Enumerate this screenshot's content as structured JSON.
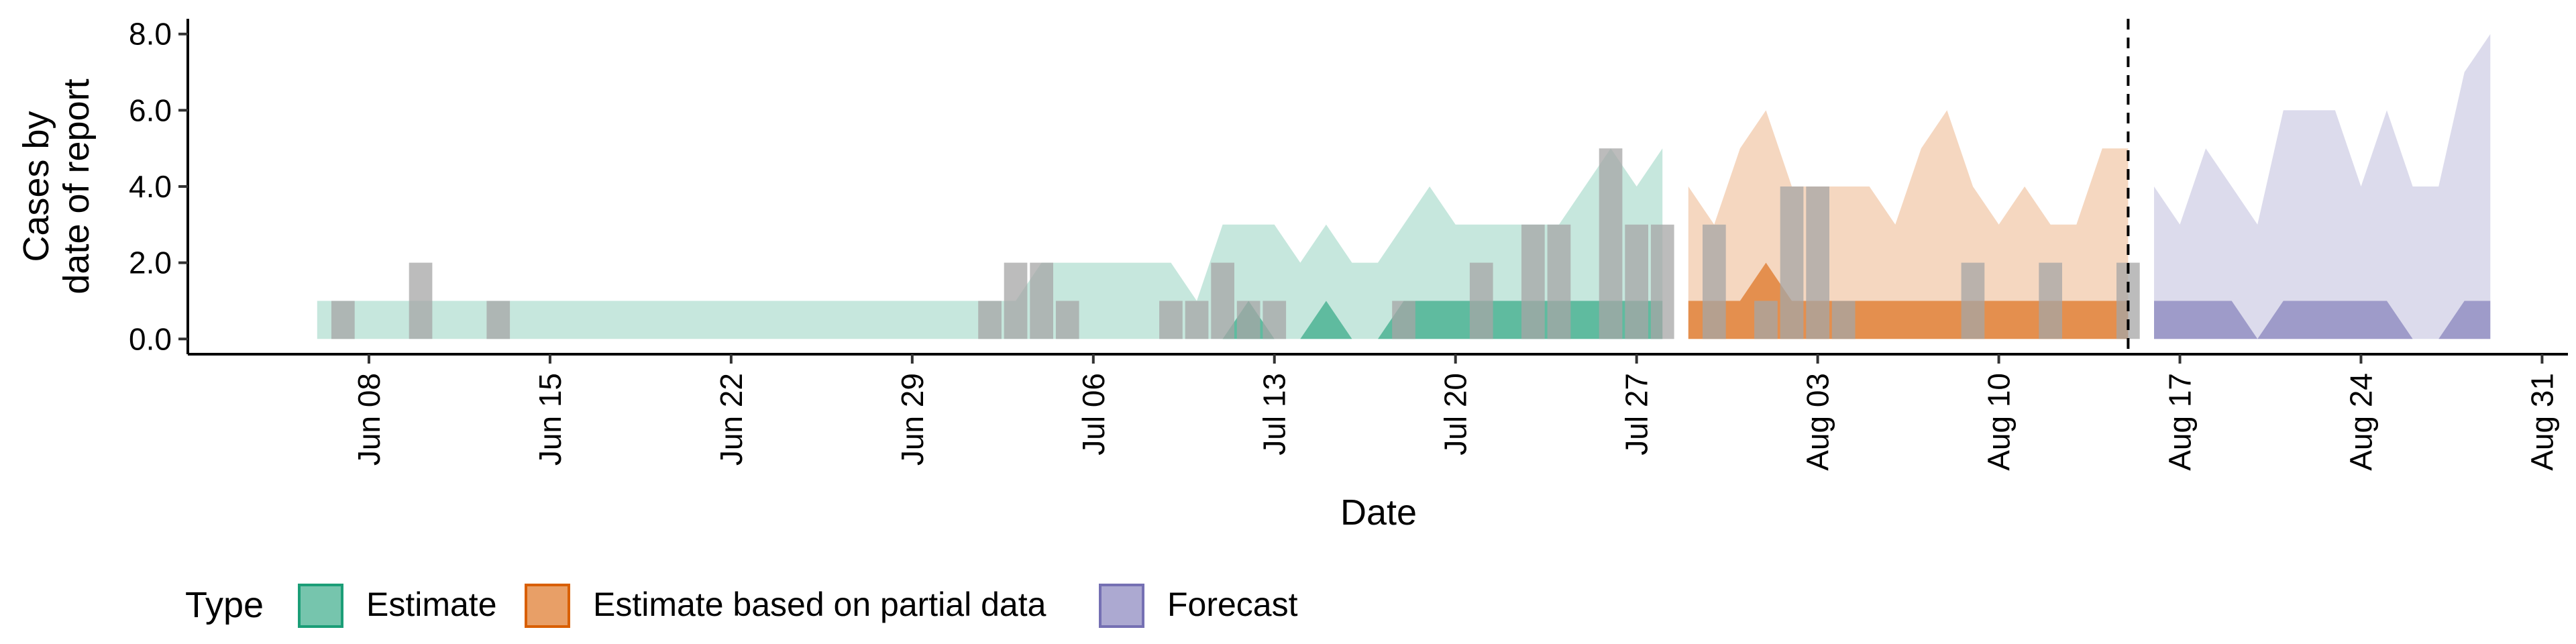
{
  "chart_data": {
    "type": "area",
    "xlabel": "Date",
    "ylabel_lines": [
      "Cases by",
      "date of report"
    ],
    "ylim": [
      -0.4,
      8.4
    ],
    "xlim": [
      "2020-06-01",
      "2020-09-01"
    ],
    "yticks": [
      0,
      2,
      4,
      6,
      8
    ],
    "ytick_labels": [
      "0.0",
      "2.0",
      "4.0",
      "6.0",
      "8.0"
    ],
    "xticks": [
      "2020-06-08",
      "2020-06-15",
      "2020-06-22",
      "2020-06-29",
      "2020-07-06",
      "2020-07-13",
      "2020-07-20",
      "2020-07-27",
      "2020-08-03",
      "2020-08-10",
      "2020-08-17",
      "2020-08-24",
      "2020-08-31"
    ],
    "xtick_labels": [
      "Jun 08",
      "Jun 15",
      "Jun 22",
      "Jun 29",
      "Jul 06",
      "Jul 13",
      "Jul 20",
      "Jul 27",
      "Aug 03",
      "Aug 10",
      "Aug 17",
      "Aug 24",
      "Aug 31"
    ],
    "vline": "2020-08-15",
    "legend": {
      "title": "Type",
      "position": "bottom-left",
      "entries": [
        {
          "label": "Estimate",
          "fill": "#1b9e77",
          "border": "#1b9e77"
        },
        {
          "label": "Estimate based on partial data",
          "fill": "#d95f02",
          "border": "#d95f02"
        },
        {
          "label": "Forecast",
          "fill": "#7570b3",
          "border": "#7570b3"
        }
      ]
    },
    "series": [
      {
        "type": "Estimate",
        "color": "#1b9e77",
        "dates": [
          "2020-06-06",
          "2020-06-07",
          "2020-06-08",
          "2020-06-09",
          "2020-06-10",
          "2020-06-11",
          "2020-06-12",
          "2020-06-13",
          "2020-06-14",
          "2020-06-15",
          "2020-06-16",
          "2020-06-17",
          "2020-06-18",
          "2020-06-19",
          "2020-06-20",
          "2020-06-21",
          "2020-06-22",
          "2020-06-23",
          "2020-06-24",
          "2020-06-25",
          "2020-06-26",
          "2020-06-27",
          "2020-06-28",
          "2020-06-29",
          "2020-06-30",
          "2020-07-01",
          "2020-07-02",
          "2020-07-03",
          "2020-07-04",
          "2020-07-05",
          "2020-07-06",
          "2020-07-07",
          "2020-07-08",
          "2020-07-09",
          "2020-07-10",
          "2020-07-11",
          "2020-07-12",
          "2020-07-13",
          "2020-07-14",
          "2020-07-15",
          "2020-07-16",
          "2020-07-17",
          "2020-07-18",
          "2020-07-19",
          "2020-07-20",
          "2020-07-21",
          "2020-07-22",
          "2020-07-23",
          "2020-07-24",
          "2020-07-25",
          "2020-07-26",
          "2020-07-27",
          "2020-07-28"
        ],
        "outer_upper": [
          1,
          1,
          1,
          1,
          1,
          1,
          1,
          1,
          1,
          1,
          1,
          1,
          1,
          1,
          1,
          1,
          1,
          1,
          1,
          1,
          1,
          1,
          1,
          1,
          1,
          1,
          1,
          1,
          2,
          2,
          2,
          2,
          2,
          2,
          1,
          3,
          3,
          3,
          2,
          3,
          2,
          2,
          3,
          4,
          3,
          3,
          3,
          3,
          3,
          4,
          5,
          4,
          5
        ],
        "inner_upper": [
          0,
          0,
          0,
          0,
          0,
          0,
          0,
          0,
          0,
          0,
          0,
          0,
          0,
          0,
          0,
          0,
          0,
          0,
          0,
          0,
          0,
          0,
          0,
          0,
          0,
          0,
          0,
          0,
          0,
          0,
          0,
          0,
          0,
          0,
          0,
          0,
          1,
          0,
          0,
          1,
          0,
          0,
          1,
          1,
          1,
          1,
          1,
          1,
          1,
          1,
          1,
          1,
          1
        ]
      },
      {
        "type": "Estimate based on partial data",
        "color": "#d95f02",
        "dates": [
          "2020-07-29",
          "2020-07-30",
          "2020-07-31",
          "2020-08-01",
          "2020-08-02",
          "2020-08-03",
          "2020-08-04",
          "2020-08-05",
          "2020-08-06",
          "2020-08-07",
          "2020-08-08",
          "2020-08-09",
          "2020-08-10",
          "2020-08-11",
          "2020-08-12",
          "2020-08-13",
          "2020-08-14",
          "2020-08-15"
        ],
        "outer_upper": [
          4,
          3,
          5,
          6,
          4,
          4,
          4,
          4,
          3,
          5,
          6,
          4,
          3,
          4,
          3,
          3,
          5,
          5
        ],
        "inner_upper": [
          1,
          1,
          1,
          2,
          1,
          1,
          1,
          1,
          1,
          1,
          1,
          1,
          1,
          1,
          1,
          1,
          1,
          1
        ]
      },
      {
        "type": "Forecast",
        "color": "#7570b3",
        "dates": [
          "2020-08-16",
          "2020-08-17",
          "2020-08-18",
          "2020-08-19",
          "2020-08-20",
          "2020-08-21",
          "2020-08-22",
          "2020-08-23",
          "2020-08-24",
          "2020-08-25",
          "2020-08-26",
          "2020-08-27",
          "2020-08-28",
          "2020-08-29"
        ],
        "outer_upper": [
          4,
          3,
          5,
          4,
          3,
          6,
          6,
          6,
          4,
          6,
          4,
          4,
          7,
          8
        ],
        "inner_upper": [
          1,
          1,
          1,
          1,
          0,
          1,
          1,
          1,
          1,
          1,
          0,
          0,
          1,
          1
        ]
      }
    ],
    "reported_cases": {
      "color": "#a6a6a6",
      "dates": [
        "2020-06-07",
        "2020-06-10",
        "2020-06-13",
        "2020-07-02",
        "2020-07-03",
        "2020-07-04",
        "2020-07-05",
        "2020-07-09",
        "2020-07-10",
        "2020-07-11",
        "2020-07-12",
        "2020-07-13",
        "2020-07-18",
        "2020-07-21",
        "2020-07-23",
        "2020-07-24",
        "2020-07-26",
        "2020-07-27",
        "2020-07-28",
        "2020-07-30",
        "2020-08-01",
        "2020-08-02",
        "2020-08-03",
        "2020-08-04",
        "2020-08-09",
        "2020-08-12",
        "2020-08-15"
      ],
      "values": [
        1,
        2,
        1,
        1,
        2,
        2,
        1,
        1,
        1,
        2,
        1,
        1,
        1,
        2,
        3,
        3,
        5,
        3,
        3,
        3,
        1,
        4,
        4,
        1,
        2,
        2,
        2
      ]
    }
  }
}
